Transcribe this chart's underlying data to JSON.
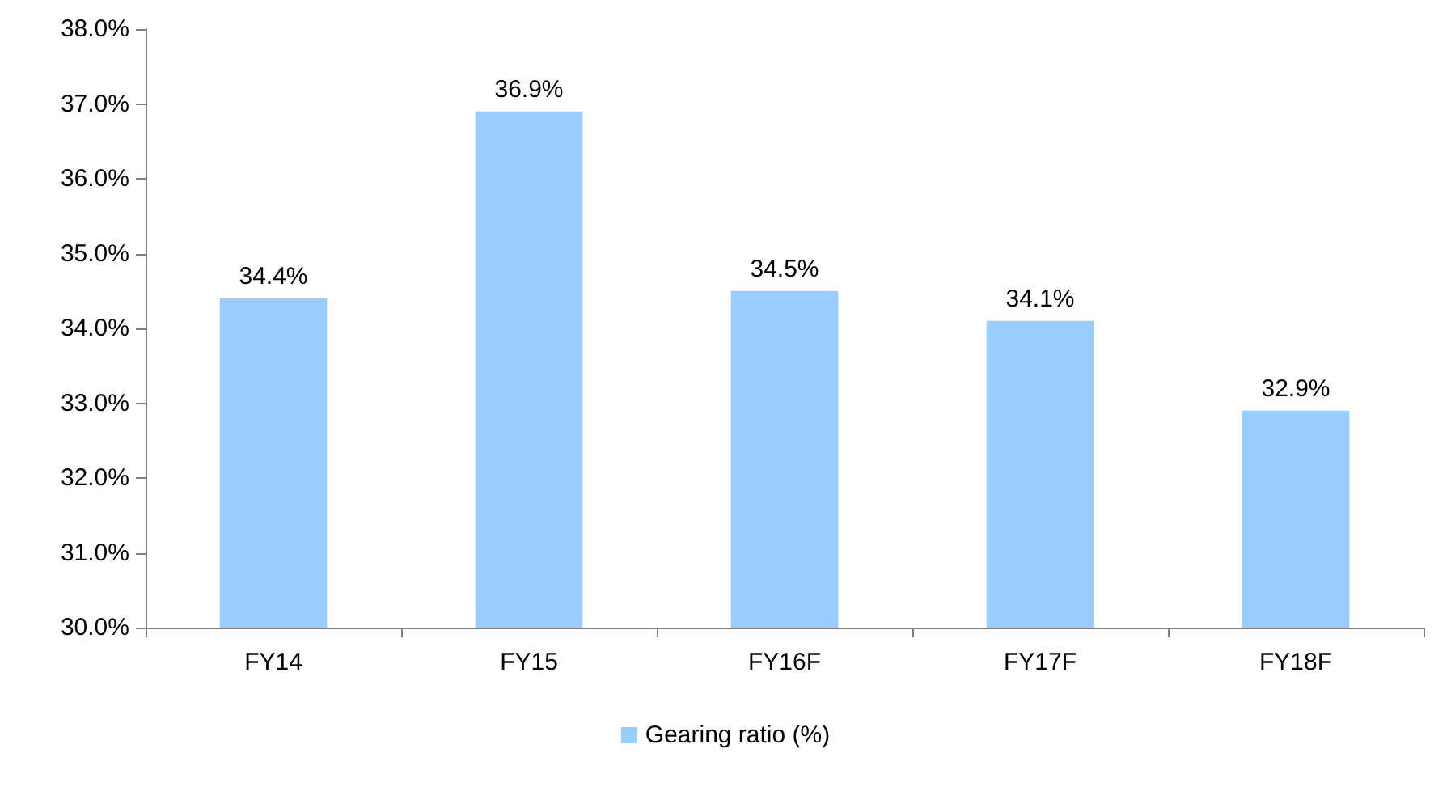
{
  "chart_data": {
    "type": "bar",
    "categories": [
      "FY14",
      "FY15",
      "FY16F",
      "FY17F",
      "FY18F"
    ],
    "series": [
      {
        "name": "Gearing ratio (%)",
        "color": "#99ccff",
        "values": [
          34.4,
          36.9,
          34.5,
          34.1,
          32.9
        ],
        "value_labels": [
          "34.4%",
          "36.9%",
          "34.5%",
          "34.1%",
          "32.9%"
        ]
      }
    ],
    "ylim": [
      30,
      38
    ],
    "yticks": [
      {
        "value": 30,
        "label": "30.0%"
      },
      {
        "value": 31,
        "label": "31.0%"
      },
      {
        "value": 32,
        "label": "32.0%"
      },
      {
        "value": 33,
        "label": "33.0%"
      },
      {
        "value": 34,
        "label": "34.0%"
      },
      {
        "value": 35,
        "label": "35.0%"
      },
      {
        "value": 36,
        "label": "36.0%"
      },
      {
        "value": 37,
        "label": "37.0%"
      },
      {
        "value": 38,
        "label": "38.0%"
      }
    ],
    "grid": false,
    "legend": "bottom"
  }
}
